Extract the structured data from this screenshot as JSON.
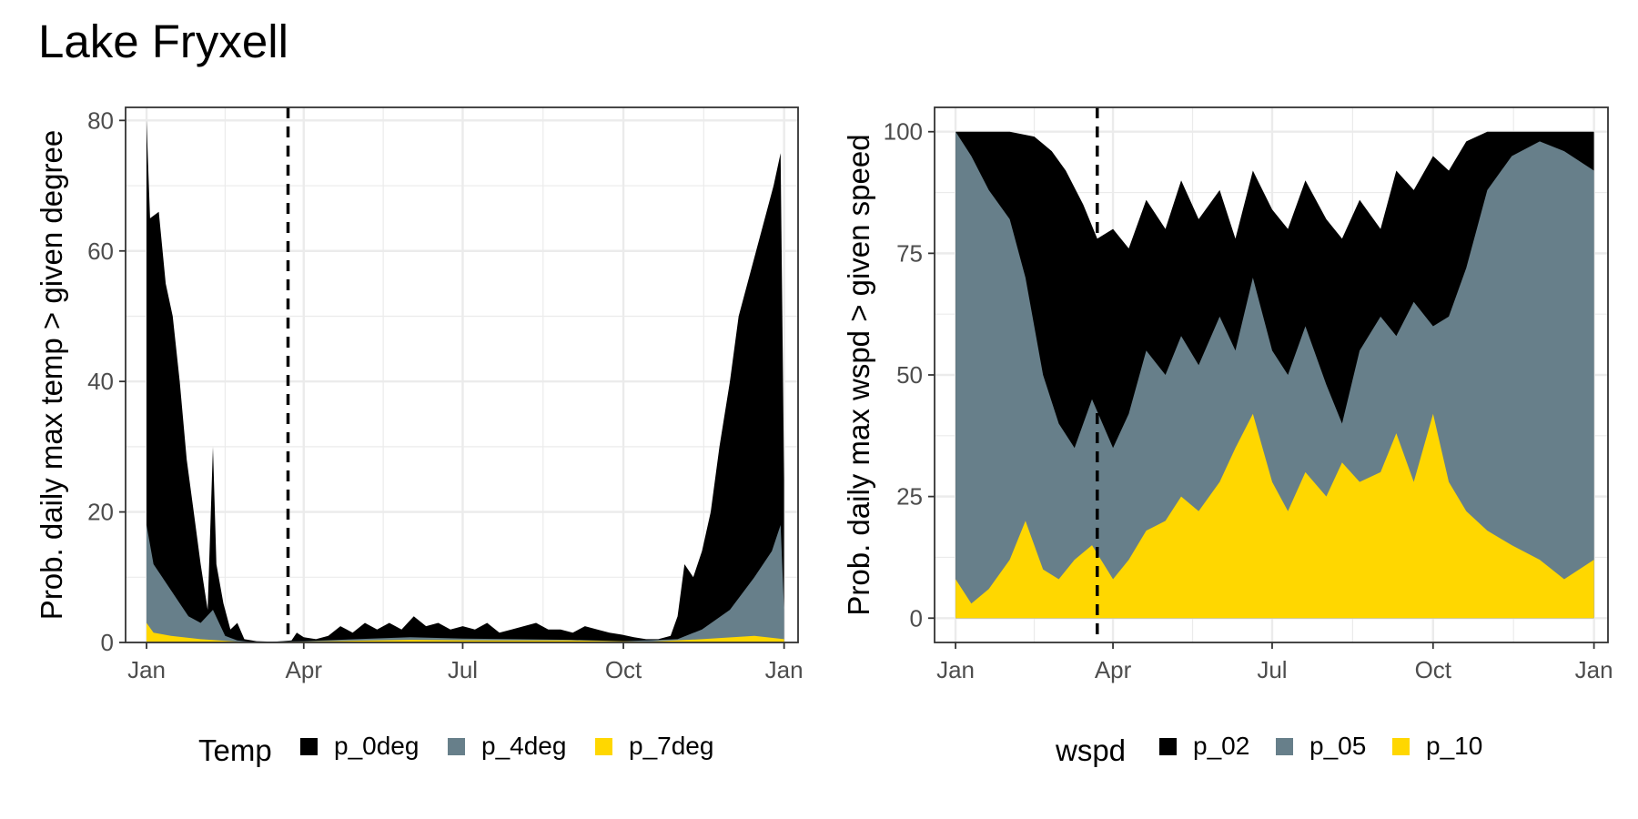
{
  "title": "Lake Fryxell",
  "colors": {
    "black": "#000000",
    "slate": "#677f8a",
    "gold": "#ffd700",
    "grid": "#ebebeb",
    "border": "#333333"
  },
  "chart_data": [
    {
      "type": "area",
      "ylabel": "Prob. daily max temp > given degree",
      "xlabel": "",
      "ylim": [
        0,
        82
      ],
      "yticks": [
        0,
        20,
        40,
        60,
        80
      ],
      "x_ticks": [
        {
          "date": "2023-01-01",
          "label": "Jan"
        },
        {
          "date": "2023-04-01",
          "label": "Apr"
        },
        {
          "date": "2023-07-01",
          "label": "Jul"
        },
        {
          "date": "2023-10-01",
          "label": "Oct"
        },
        {
          "date": "2024-01-01",
          "label": "Jan"
        }
      ],
      "xlim": [
        "2022-12-20",
        "2024-01-09"
      ],
      "vline": "2023-03-23",
      "legend_title": "Temp",
      "legend_position": "bottom",
      "grid": true,
      "series": [
        {
          "name": "p_0deg",
          "color": "#000000",
          "points": [
            [
              "2023-01-01",
              80
            ],
            [
              "2023-01-03",
              65
            ],
            [
              "2023-01-08",
              66
            ],
            [
              "2023-01-12",
              55
            ],
            [
              "2023-01-16",
              50
            ],
            [
              "2023-01-20",
              40
            ],
            [
              "2023-01-24",
              28
            ],
            [
              "2023-01-28",
              20
            ],
            [
              "2023-02-01",
              12
            ],
            [
              "2023-02-05",
              5
            ],
            [
              "2023-02-08",
              30
            ],
            [
              "2023-02-10",
              12
            ],
            [
              "2023-02-14",
              6
            ],
            [
              "2023-02-18",
              2
            ],
            [
              "2023-02-22",
              3
            ],
            [
              "2023-02-26",
              0.5
            ],
            [
              "2023-03-05",
              0.2
            ],
            [
              "2023-03-15",
              0.1
            ],
            [
              "2023-03-25",
              0.3
            ],
            [
              "2023-03-28",
              1.5
            ],
            [
              "2023-04-01",
              0.8
            ],
            [
              "2023-04-08",
              0.5
            ],
            [
              "2023-04-15",
              1
            ],
            [
              "2023-04-22",
              2.5
            ],
            [
              "2023-04-29",
              1.5
            ],
            [
              "2023-05-06",
              3
            ],
            [
              "2023-05-13",
              2
            ],
            [
              "2023-05-20",
              3
            ],
            [
              "2023-05-27",
              2
            ],
            [
              "2023-06-03",
              4
            ],
            [
              "2023-06-10",
              2.5
            ],
            [
              "2023-06-17",
              3
            ],
            [
              "2023-06-24",
              2
            ],
            [
              "2023-07-01",
              2.5
            ],
            [
              "2023-07-08",
              2
            ],
            [
              "2023-07-15",
              3
            ],
            [
              "2023-07-22",
              1.5
            ],
            [
              "2023-07-29",
              2
            ],
            [
              "2023-08-05",
              2.5
            ],
            [
              "2023-08-12",
              3
            ],
            [
              "2023-08-19",
              2
            ],
            [
              "2023-08-26",
              2
            ],
            [
              "2023-09-02",
              1.5
            ],
            [
              "2023-09-09",
              2.5
            ],
            [
              "2023-09-16",
              2
            ],
            [
              "2023-09-23",
              1.5
            ],
            [
              "2023-09-30",
              1.2
            ],
            [
              "2023-10-07",
              0.8
            ],
            [
              "2023-10-14",
              0.5
            ],
            [
              "2023-10-21",
              0.5
            ],
            [
              "2023-10-28",
              1
            ],
            [
              "2023-11-01",
              4
            ],
            [
              "2023-11-05",
              12
            ],
            [
              "2023-11-10",
              10
            ],
            [
              "2023-11-15",
              14
            ],
            [
              "2023-11-20",
              20
            ],
            [
              "2023-11-25",
              30
            ],
            [
              "2023-12-01",
              40
            ],
            [
              "2023-12-06",
              50
            ],
            [
              "2023-12-11",
              55
            ],
            [
              "2023-12-16",
              60
            ],
            [
              "2023-12-21",
              65
            ],
            [
              "2023-12-26",
              70
            ],
            [
              "2023-12-30",
              75
            ],
            [
              "2024-01-01",
              25
            ]
          ]
        },
        {
          "name": "p_4deg",
          "color": "#677f8a",
          "points": [
            [
              "2023-01-01",
              18
            ],
            [
              "2023-01-05",
              12
            ],
            [
              "2023-01-10",
              10
            ],
            [
              "2023-01-15",
              8
            ],
            [
              "2023-01-20",
              6
            ],
            [
              "2023-01-25",
              4
            ],
            [
              "2023-02-01",
              3
            ],
            [
              "2023-02-08",
              5
            ],
            [
              "2023-02-15",
              1
            ],
            [
              "2023-02-22",
              0.3
            ],
            [
              "2023-03-01",
              0.1
            ],
            [
              "2023-04-01",
              0.2
            ],
            [
              "2023-05-01",
              0.5
            ],
            [
              "2023-06-01",
              0.8
            ],
            [
              "2023-07-01",
              0.6
            ],
            [
              "2023-08-01",
              0.5
            ],
            [
              "2023-09-01",
              0.4
            ],
            [
              "2023-10-01",
              0.2
            ],
            [
              "2023-11-01",
              0.5
            ],
            [
              "2023-11-15",
              2
            ],
            [
              "2023-12-01",
              5
            ],
            [
              "2023-12-15",
              10
            ],
            [
              "2023-12-25",
              14
            ],
            [
              "2023-12-30",
              18
            ],
            [
              "2024-01-01",
              5
            ]
          ]
        },
        {
          "name": "p_7deg",
          "color": "#ffd700",
          "points": [
            [
              "2023-01-01",
              3
            ],
            [
              "2023-01-05",
              1.5
            ],
            [
              "2023-01-15",
              1
            ],
            [
              "2023-02-01",
              0.5
            ],
            [
              "2023-03-01",
              0
            ],
            [
              "2023-04-15",
              0.2
            ],
            [
              "2023-06-01",
              0.4
            ],
            [
              "2023-07-15",
              0.3
            ],
            [
              "2023-09-01",
              0.3
            ],
            [
              "2023-10-15",
              0.1
            ],
            [
              "2023-11-15",
              0.5
            ],
            [
              "2023-12-15",
              1
            ],
            [
              "2024-01-01",
              0.5
            ]
          ]
        }
      ]
    },
    {
      "type": "area",
      "ylabel": "Prob. daily max wspd > given speed",
      "xlabel": "",
      "ylim": [
        -5,
        105
      ],
      "yticks": [
        0,
        25,
        50,
        75,
        100
      ],
      "x_ticks": [
        {
          "date": "2023-01-01",
          "label": "Jan"
        },
        {
          "date": "2023-04-01",
          "label": "Apr"
        },
        {
          "date": "2023-07-01",
          "label": "Jul"
        },
        {
          "date": "2023-10-01",
          "label": "Oct"
        },
        {
          "date": "2024-01-01",
          "label": "Jan"
        }
      ],
      "xlim": [
        "2022-12-20",
        "2024-01-09"
      ],
      "vline": "2023-03-23",
      "legend_title": "wspd",
      "legend_position": "bottom",
      "grid": true,
      "series": [
        {
          "name": "p_02",
          "color": "#000000",
          "points": [
            [
              "2023-01-01",
              100
            ],
            [
              "2023-02-01",
              100
            ],
            [
              "2023-02-15",
              99
            ],
            [
              "2023-02-25",
              96
            ],
            [
              "2023-03-05",
              92
            ],
            [
              "2023-03-15",
              85
            ],
            [
              "2023-03-23",
              78
            ],
            [
              "2023-04-01",
              80
            ],
            [
              "2023-04-10",
              76
            ],
            [
              "2023-04-20",
              86
            ],
            [
              "2023-05-01",
              80
            ],
            [
              "2023-05-10",
              90
            ],
            [
              "2023-05-20",
              82
            ],
            [
              "2023-06-01",
              88
            ],
            [
              "2023-06-10",
              78
            ],
            [
              "2023-06-20",
              92
            ],
            [
              "2023-07-01",
              84
            ],
            [
              "2023-07-10",
              80
            ],
            [
              "2023-07-20",
              90
            ],
            [
              "2023-08-01",
              82
            ],
            [
              "2023-08-10",
              78
            ],
            [
              "2023-08-20",
              86
            ],
            [
              "2023-09-01",
              80
            ],
            [
              "2023-09-10",
              92
            ],
            [
              "2023-09-20",
              88
            ],
            [
              "2023-10-01",
              95
            ],
            [
              "2023-10-10",
              92
            ],
            [
              "2023-10-20",
              98
            ],
            [
              "2023-11-01",
              100
            ],
            [
              "2023-12-01",
              100
            ],
            [
              "2024-01-01",
              100
            ]
          ]
        },
        {
          "name": "p_05",
          "color": "#677f8a",
          "points": [
            [
              "2023-01-01",
              100
            ],
            [
              "2023-01-10",
              95
            ],
            [
              "2023-01-20",
              88
            ],
            [
              "2023-02-01",
              82
            ],
            [
              "2023-02-10",
              70
            ],
            [
              "2023-02-20",
              50
            ],
            [
              "2023-03-01",
              40
            ],
            [
              "2023-03-10",
              35
            ],
            [
              "2023-03-20",
              45
            ],
            [
              "2023-04-01",
              35
            ],
            [
              "2023-04-10",
              42
            ],
            [
              "2023-04-20",
              55
            ],
            [
              "2023-05-01",
              50
            ],
            [
              "2023-05-10",
              58
            ],
            [
              "2023-05-20",
              52
            ],
            [
              "2023-06-01",
              62
            ],
            [
              "2023-06-10",
              55
            ],
            [
              "2023-06-20",
              70
            ],
            [
              "2023-07-01",
              55
            ],
            [
              "2023-07-10",
              50
            ],
            [
              "2023-07-20",
              60
            ],
            [
              "2023-08-01",
              48
            ],
            [
              "2023-08-10",
              40
            ],
            [
              "2023-08-20",
              55
            ],
            [
              "2023-09-01",
              62
            ],
            [
              "2023-09-10",
              58
            ],
            [
              "2023-09-20",
              65
            ],
            [
              "2023-10-01",
              60
            ],
            [
              "2023-10-10",
              62
            ],
            [
              "2023-10-20",
              72
            ],
            [
              "2023-11-01",
              88
            ],
            [
              "2023-11-15",
              95
            ],
            [
              "2023-12-01",
              98
            ],
            [
              "2023-12-15",
              96
            ],
            [
              "2024-01-01",
              92
            ]
          ]
        },
        {
          "name": "p_10",
          "color": "#ffd700",
          "points": [
            [
              "2023-01-01",
              8
            ],
            [
              "2023-01-10",
              3
            ],
            [
              "2023-01-20",
              6
            ],
            [
              "2023-02-01",
              12
            ],
            [
              "2023-02-10",
              20
            ],
            [
              "2023-02-20",
              10
            ],
            [
              "2023-03-01",
              8
            ],
            [
              "2023-03-10",
              12
            ],
            [
              "2023-03-20",
              15
            ],
            [
              "2023-04-01",
              8
            ],
            [
              "2023-04-10",
              12
            ],
            [
              "2023-04-20",
              18
            ],
            [
              "2023-05-01",
              20
            ],
            [
              "2023-05-10",
              25
            ],
            [
              "2023-05-20",
              22
            ],
            [
              "2023-06-01",
              28
            ],
            [
              "2023-06-10",
              35
            ],
            [
              "2023-06-20",
              42
            ],
            [
              "2023-07-01",
              28
            ],
            [
              "2023-07-10",
              22
            ],
            [
              "2023-07-20",
              30
            ],
            [
              "2023-08-01",
              25
            ],
            [
              "2023-08-10",
              32
            ],
            [
              "2023-08-20",
              28
            ],
            [
              "2023-09-01",
              30
            ],
            [
              "2023-09-10",
              38
            ],
            [
              "2023-09-20",
              28
            ],
            [
              "2023-10-01",
              42
            ],
            [
              "2023-10-10",
              28
            ],
            [
              "2023-10-20",
              22
            ],
            [
              "2023-11-01",
              18
            ],
            [
              "2023-11-15",
              15
            ],
            [
              "2023-12-01",
              12
            ],
            [
              "2023-12-15",
              8
            ],
            [
              "2024-01-01",
              12
            ]
          ]
        }
      ]
    }
  ]
}
